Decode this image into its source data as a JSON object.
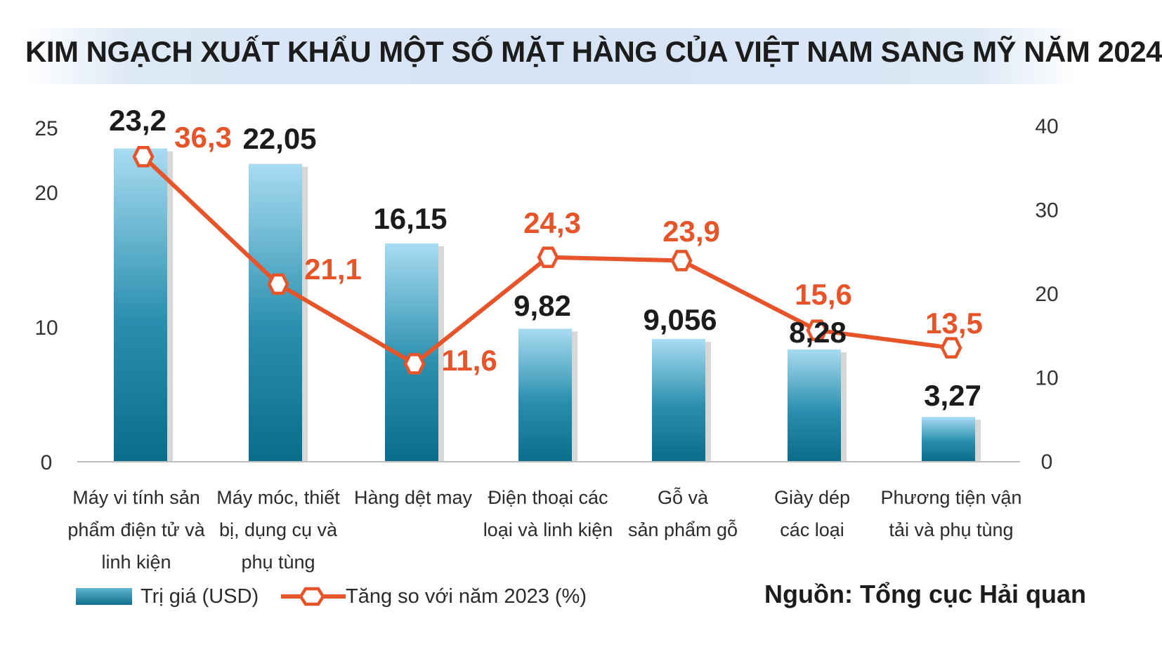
{
  "title": "KIM NGẠCH XUẤT KHẨU MỘT SỐ MẶT HÀNG CỦA VIỆT NAM SANG MỸ NĂM 2024",
  "source": "Nguồn: Tổng cục Hải quan",
  "legend": {
    "bar_label": "Trị giá (USD)",
    "line_label": "Tăng so với năm 2023 (%)"
  },
  "colors": {
    "bar_top": "#a8dcf1",
    "bar_bottom": "#0a6d8a",
    "bar_shadow": "#d7d7d7",
    "line": "#e8542a",
    "axis": "#bdbdbd"
  },
  "chart_data": {
    "type": "bar",
    "title": "KIM NGẠCH XUẤT KHẨU MỘT SỐ MẶT HÀNG CỦA VIỆT NAM SANG MỸ NĂM 2024",
    "categories": [
      [
        "Máy vi tính sản",
        "phẩm điện tử và",
        "linh kiện"
      ],
      [
        "Máy móc, thiết",
        "bị, dụng cụ và",
        "phụ tùng"
      ],
      [
        "Hàng dệt may"
      ],
      [
        "Điện thoại các",
        "loại và linh kiện"
      ],
      [
        "Gỗ và",
        "sản phẩm gỗ"
      ],
      [
        "Giày dép",
        "các loại"
      ],
      [
        "Phương tiện vận",
        "tải và phụ tùng"
      ]
    ],
    "series": [
      {
        "name": "Trị giá (USD)",
        "type": "bar",
        "axis": "left",
        "values": [
          23.2,
          22.05,
          16.15,
          9.82,
          9.056,
          8.28,
          3.27
        ],
        "labels": [
          "23,2",
          "22,05",
          "16,15",
          "9,82",
          "9,056",
          "8,28",
          "3,27"
        ]
      },
      {
        "name": "Tăng so với năm 2023 (%)",
        "type": "line",
        "axis": "right",
        "values": [
          36.3,
          21.1,
          11.6,
          24.3,
          23.9,
          15.6,
          13.5
        ],
        "labels": [
          "36,3",
          "21,1",
          "11,6",
          "24,3",
          "23,9",
          "15,6",
          "13,5"
        ]
      }
    ],
    "y_left": {
      "ticks": [
        "0",
        "10",
        "20",
        "25"
      ],
      "tick_values": [
        0,
        10,
        20,
        25
      ]
    },
    "y_right": {
      "ylim": [
        0,
        40
      ],
      "ticks": [
        "0",
        "10",
        "20",
        "30",
        "40"
      ],
      "tick_values": [
        0,
        10,
        20,
        30,
        40
      ]
    },
    "grid": false,
    "legend_position": "bottom-left"
  }
}
